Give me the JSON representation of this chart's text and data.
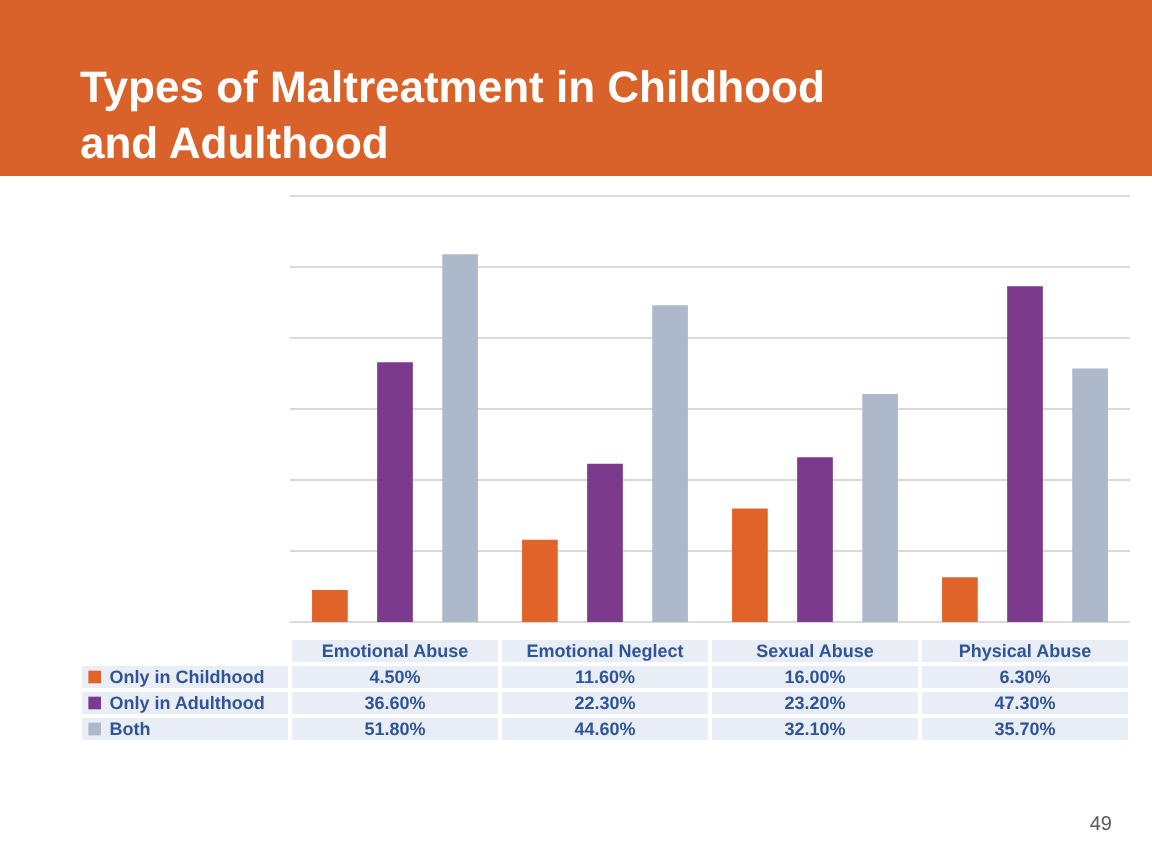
{
  "chart_data": {
    "type": "bar",
    "title": "Types of Maltreatment in Childhood and Adulthood",
    "categories": [
      "Emotional Abuse",
      "Emotional Neglect",
      "Sexual Abuse",
      "Physical Abuse"
    ],
    "series": [
      {
        "name": "Only in Childhood",
        "color": "#e0642a",
        "values": [
          4.5,
          11.6,
          16.0,
          6.3
        ],
        "value_labels": [
          "4.50%",
          "11.60%",
          "16.00%",
          "6.30%"
        ]
      },
      {
        "name": "Only in Adulthood",
        "color": "#7b3a8c",
        "values": [
          36.6,
          22.3,
          23.2,
          47.3
        ],
        "value_labels": [
          "36.60%",
          "22.30%",
          "23.20%",
          "47.30%"
        ]
      },
      {
        "name": "Both",
        "color": "#adb9ca",
        "values": [
          51.8,
          44.6,
          32.1,
          35.7
        ],
        "value_labels": [
          "51.80%",
          "44.60%",
          "32.10%",
          "35.70%"
        ]
      }
    ],
    "ylim": [
      0,
      60
    ],
    "yticks": [
      {
        "value": 0,
        "label": null
      },
      {
        "value": 10,
        "label": null
      },
      {
        "value": 20,
        "label": null
      },
      {
        "value": 30,
        "label": null
      },
      {
        "value": 40,
        "label": null
      },
      {
        "value": 50,
        "label": null
      },
      {
        "value": 60,
        "label": null
      }
    ],
    "tick_labels": "x",
    "grid": "y",
    "legend": "bottom",
    "annotations": [
      "49"
    ]
  }
}
